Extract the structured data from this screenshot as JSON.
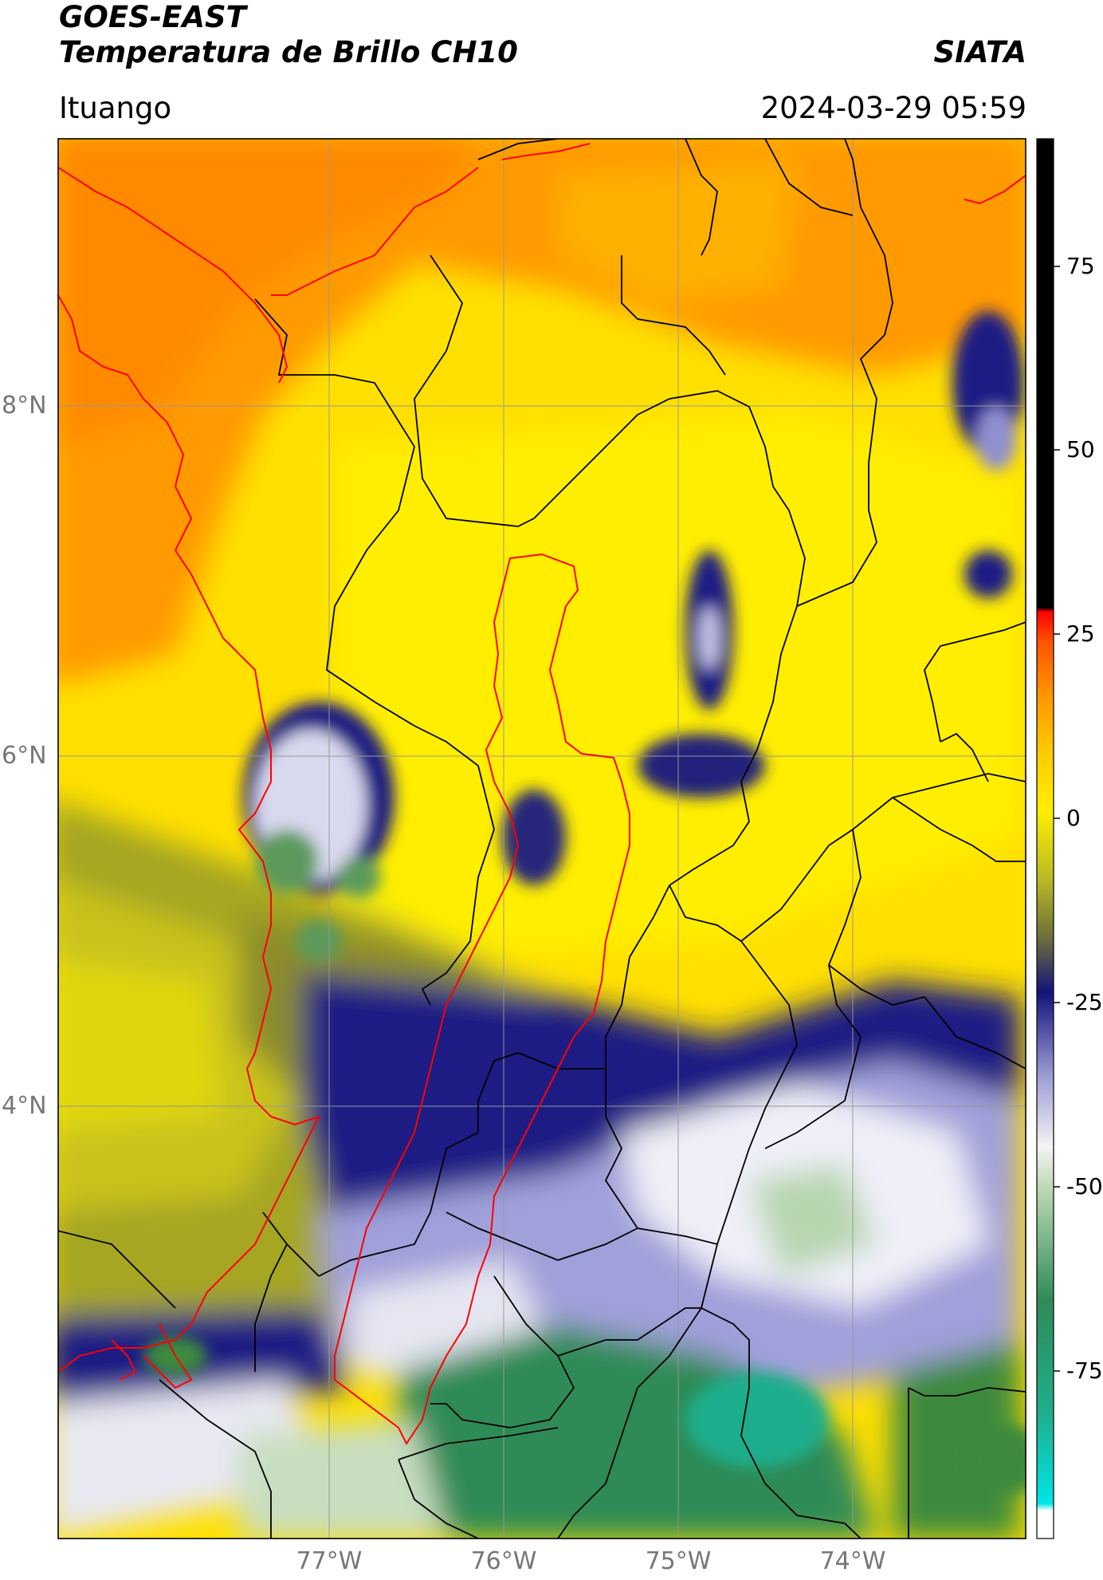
{
  "header": {
    "title_line1": "GOES-EAST",
    "title_line2": "Temperatura de Brillo CH10",
    "brand": "SIATA",
    "region": "Ituango",
    "timestamp": "2024-03-29 05:59"
  },
  "map": {
    "lat_labels": [
      "8°N",
      "6°N",
      "4°N"
    ],
    "lon_labels": [
      "77°W",
      "76°W",
      "75°W",
      "74°W"
    ],
    "grid": true,
    "colors": {
      "hot_orange": "#ff9a00",
      "warm_yellow": "#ffee00",
      "olive": "#9b9b1e",
      "navy": "#14147a",
      "lavender": "#a0a0d8",
      "white": "#f4f4f4",
      "green": "#2e8b57",
      "border_red": "#ff0000",
      "border_black": "#000000"
    }
  },
  "colorbar": {
    "tick_labels": [
      "75",
      "50",
      "25",
      "0",
      "-25",
      "-50",
      "-75"
    ],
    "tick_values": [
      75,
      50,
      25,
      0,
      -25,
      -50,
      -75
    ],
    "range": [
      -90,
      90
    ]
  }
}
